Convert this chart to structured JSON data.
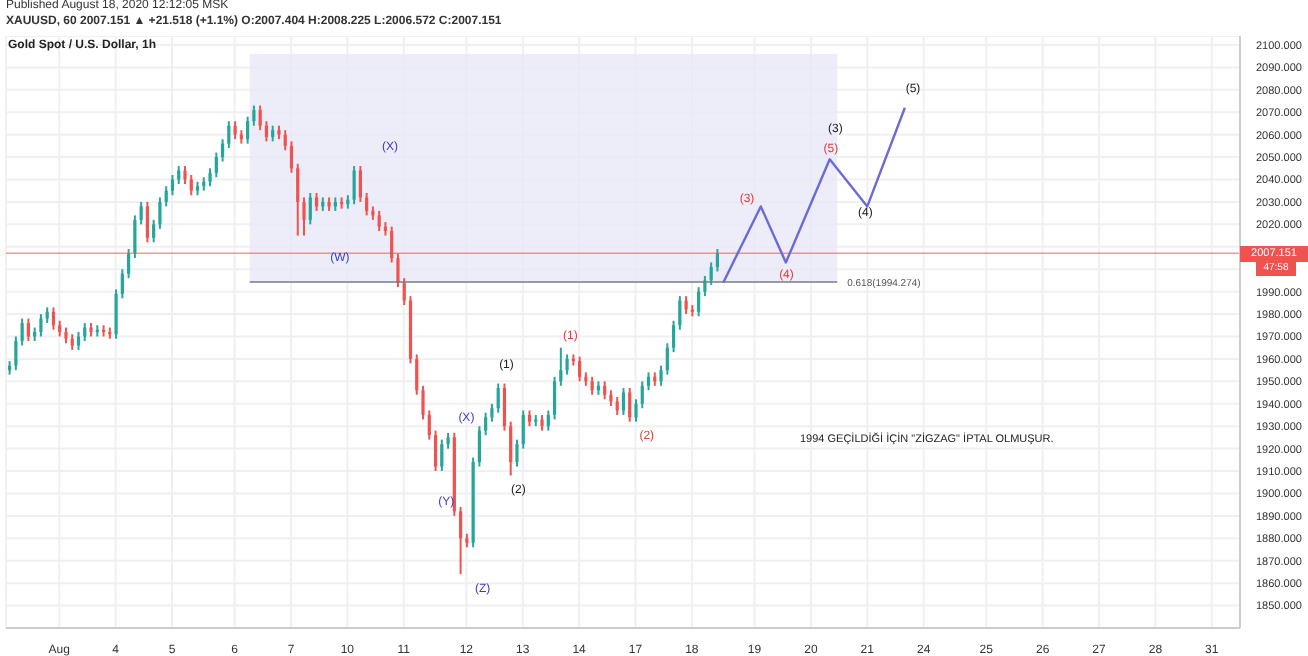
{
  "chart_data": {
    "type": "candlestick",
    "title": "Gold Spot / U.S. Dollar, 1h",
    "subtitle": "XAUUSD, 60 2007.151 ▲ +21.518 (+1.1%) O:2007.404 H:2008.225 L:2006.572 C:2007.151",
    "categories": [
      null,
      null,
      null,
      null,
      null,
      null,
      null,
      null,
      "Aug",
      null,
      null,
      null,
      null,
      null,
      null,
      null,
      null,
      "4",
      null,
      null,
      null,
      null,
      null,
      null,
      null,
      null,
      "5",
      null,
      null,
      null,
      null,
      null,
      null,
      null,
      null,
      null,
      "6",
      null,
      null,
      null,
      null,
      null,
      null,
      null,
      null,
      "7",
      null,
      null,
      null,
      null,
      null,
      null,
      null,
      null,
      "10",
      null,
      null,
      null,
      null,
      null,
      null,
      null,
      null,
      "11",
      null,
      null,
      null,
      null,
      null,
      null,
      null,
      null,
      null,
      "12",
      null,
      null,
      null,
      null,
      null,
      null,
      null,
      null,
      "13",
      null,
      null,
      null,
      null,
      null,
      null,
      null,
      null,
      "14",
      null,
      null,
      null,
      null,
      null,
      null,
      null,
      null,
      "17",
      null,
      null,
      null,
      null,
      null,
      null,
      null,
      null,
      "18",
      null,
      null,
      null,
      null,
      null,
      null,
      null,
      null,
      null,
      "19",
      null,
      null,
      null,
      null,
      null,
      null,
      null,
      null,
      "20",
      null,
      null,
      null,
      null,
      null,
      null,
      null,
      null,
      "21",
      null,
      null,
      null,
      null,
      null,
      null,
      null,
      null,
      "24",
      null,
      null,
      null,
      null,
      null,
      null,
      null,
      null,
      null,
      "25",
      null,
      null,
      null,
      null,
      null,
      null,
      null,
      null,
      "26",
      null,
      null,
      null,
      null,
      null,
      null,
      null,
      null,
      "27",
      null,
      null,
      null,
      null,
      null,
      null,
      null,
      null,
      "28",
      null,
      null,
      null,
      null,
      null,
      null,
      null,
      null,
      "31",
      null,
      null,
      null,
      null
    ],
    "ohlc": [
      [
        1955,
        1959,
        1953,
        1957
      ],
      [
        1957,
        1970,
        1955,
        1968
      ],
      [
        1968,
        1978,
        1966,
        1976
      ],
      [
        1976,
        1978,
        1968,
        1970
      ],
      [
        1970,
        1974,
        1968,
        1972
      ],
      [
        1972,
        1980,
        1970,
        1978
      ],
      [
        1978,
        1983,
        1976,
        1981
      ],
      [
        1981,
        1983,
        1973,
        1975
      ],
      [
        1975,
        1977,
        1970,
        1972
      ],
      [
        1972,
        1974,
        1967,
        1969
      ],
      [
        1969,
        1971,
        1964,
        1966
      ],
      [
        1966,
        1972,
        1964,
        1970
      ],
      [
        1970,
        1976,
        1968,
        1974
      ],
      [
        1974,
        1976,
        1970,
        1972
      ],
      [
        1972,
        1975,
        1970,
        1973
      ],
      [
        1973,
        1975,
        1970,
        1972
      ],
      [
        1972,
        1974,
        1969,
        1971
      ],
      [
        1971,
        1991,
        1969,
        1989
      ],
      [
        1989,
        2000,
        1987,
        1998
      ],
      [
        1998,
        2009,
        1996,
        2007
      ],
      [
        2007,
        2024,
        2005,
        2022
      ],
      [
        2022,
        2030,
        2020,
        2028
      ],
      [
        2028,
        2030,
        2012,
        2014
      ],
      [
        2014,
        2022,
        2012,
        2020
      ],
      [
        2020,
        2032,
        2018,
        2030
      ],
      [
        2030,
        2037,
        2028,
        2035
      ],
      [
        2035,
        2042,
        2033,
        2040
      ],
      [
        2040,
        2046,
        2038,
        2044
      ],
      [
        2044,
        2046,
        2038,
        2040
      ],
      [
        2040,
        2042,
        2033,
        2035
      ],
      [
        2035,
        2039,
        2033,
        2037
      ],
      [
        2037,
        2041,
        2035,
        2039
      ],
      [
        2039,
        2045,
        2037,
        2043
      ],
      [
        2043,
        2052,
        2041,
        2050
      ],
      [
        2050,
        2058,
        2048,
        2056
      ],
      [
        2056,
        2066,
        2054,
        2064
      ],
      [
        2064,
        2066,
        2058,
        2060
      ],
      [
        2060,
        2062,
        2056,
        2058
      ],
      [
        2058,
        2068,
        2056,
        2066
      ],
      [
        2066,
        2073,
        2064,
        2071
      ],
      [
        2071,
        2073,
        2062,
        2064
      ],
      [
        2064,
        2066,
        2057,
        2059
      ],
      [
        2059,
        2064,
        2057,
        2062
      ],
      [
        2062,
        2064,
        2058,
        2060
      ],
      [
        2060,
        2062,
        2053,
        2055
      ],
      [
        2055,
        2057,
        2043,
        2045
      ],
      [
        2045,
        2047,
        2015,
        2030
      ],
      [
        2030,
        2032,
        2015,
        2022
      ],
      [
        2022,
        2034,
        2020,
        2032
      ],
      [
        2032,
        2034,
        2026,
        2028
      ],
      [
        2028,
        2032,
        2026,
        2030
      ],
      [
        2030,
        2032,
        2026,
        2028
      ],
      [
        2028,
        2032,
        2026,
        2030
      ],
      [
        2030,
        2032,
        2027,
        2029
      ],
      [
        2029,
        2033,
        2027,
        2031
      ],
      [
        2031,
        2046,
        2029,
        2044
      ],
      [
        2044,
        2046,
        2030,
        2032
      ],
      [
        2032,
        2034,
        2024,
        2026
      ],
      [
        2026,
        2028,
        2022,
        2024
      ],
      [
        2024,
        2026,
        2017,
        2019
      ],
      [
        2019,
        2021,
        2015,
        2017
      ],
      [
        2017,
        2019,
        2003,
        2005
      ],
      [
        2005,
        2007,
        1992,
        1994
      ],
      [
        1994,
        1996,
        1984,
        1986
      ],
      [
        1986,
        1988,
        1958,
        1960
      ],
      [
        1960,
        1962,
        1944,
        1946
      ],
      [
        1946,
        1948,
        1933,
        1935
      ],
      [
        1935,
        1937,
        1924,
        1926
      ],
      [
        1926,
        1928,
        1910,
        1912
      ],
      [
        1912,
        1924,
        1910,
        1922
      ],
      [
        1922,
        1927,
        1920,
        1925
      ],
      [
        1925,
        1927,
        1890,
        1892
      ],
      [
        1892,
        1894,
        1864,
        1880
      ],
      [
        1880,
        1882,
        1876,
        1878
      ],
      [
        1878,
        1916,
        1876,
        1914
      ],
      [
        1914,
        1930,
        1912,
        1928
      ],
      [
        1928,
        1936,
        1926,
        1934
      ],
      [
        1934,
        1940,
        1932,
        1938
      ],
      [
        1938,
        1949,
        1936,
        1947
      ],
      [
        1947,
        1949,
        1928,
        1930
      ],
      [
        1930,
        1932,
        1908,
        1914
      ],
      [
        1914,
        1924,
        1912,
        1922
      ],
      [
        1922,
        1937,
        1920,
        1935
      ],
      [
        1935,
        1937,
        1930,
        1932
      ],
      [
        1932,
        1935,
        1930,
        1933
      ],
      [
        1933,
        1935,
        1928,
        1930
      ],
      [
        1930,
        1937,
        1928,
        1935
      ],
      [
        1935,
        1952,
        1933,
        1950
      ],
      [
        1950,
        1965,
        1948,
        1955
      ],
      [
        1955,
        1962,
        1953,
        1960
      ],
      [
        1960,
        1962,
        1957,
        1959
      ],
      [
        1959,
        1961,
        1950,
        1952
      ],
      [
        1952,
        1954,
        1948,
        1950
      ],
      [
        1950,
        1952,
        1944,
        1946
      ],
      [
        1946,
        1950,
        1944,
        1948
      ],
      [
        1948,
        1950,
        1942,
        1944
      ],
      [
        1944,
        1946,
        1939,
        1941
      ],
      [
        1941,
        1943,
        1935,
        1937
      ],
      [
        1937,
        1947,
        1935,
        1945
      ],
      [
        1945,
        1947,
        1932,
        1934
      ],
      [
        1934,
        1942,
        1932,
        1940
      ],
      [
        1940,
        1950,
        1938,
        1948
      ],
      [
        1948,
        1954,
        1946,
        1952
      ],
      [
        1952,
        1954,
        1948,
        1950
      ],
      [
        1950,
        1957,
        1948,
        1955
      ],
      [
        1955,
        1967,
        1953,
        1965
      ],
      [
        1965,
        1977,
        1963,
        1975
      ],
      [
        1975,
        1988,
        1973,
        1986
      ],
      [
        1986,
        1988,
        1980,
        1982
      ],
      [
        1982,
        1984,
        1979,
        1981
      ],
      [
        1981,
        1992,
        1979,
        1990
      ],
      [
        1990,
        1997,
        1988,
        1995
      ],
      [
        1995,
        2003,
        1993,
        2001
      ],
      [
        2001,
        2009,
        1999,
        2007.151
      ],
      null,
      null,
      null,
      null,
      null,
      null,
      null,
      null,
      null,
      null,
      null,
      null,
      null,
      null,
      null,
      null,
      null,
      null,
      null,
      null,
      null,
      null,
      null,
      null,
      null,
      null,
      null,
      null,
      null,
      null,
      null,
      null,
      null,
      null,
      null,
      null,
      null,
      null,
      null,
      null,
      null,
      null,
      null,
      null,
      null,
      null,
      null,
      null,
      null,
      null,
      null,
      null,
      null,
      null,
      null,
      null,
      null,
      null,
      null,
      null,
      null,
      null,
      null,
      null,
      null,
      null,
      null,
      null,
      null,
      null,
      null,
      null,
      null,
      null,
      null,
      null,
      null,
      null,
      null,
      null,
      null,
      null,
      null
    ],
    "series": [
      {
        "type": "line",
        "color": "#6b6bd6",
        "values": [
          null,
          null,
          null,
          null,
          null,
          null,
          null,
          null,
          null,
          null,
          null,
          null,
          null,
          null,
          null,
          null,
          null,
          null,
          null,
          null,
          null,
          null,
          null,
          null,
          null,
          null,
          null,
          null,
          null,
          null,
          null,
          null,
          null,
          null,
          null,
          null,
          null,
          null,
          null,
          null,
          null,
          null,
          null,
          null,
          null,
          null,
          null,
          null,
          null,
          null,
          null,
          null,
          null,
          null,
          null,
          null,
          null,
          null,
          null,
          null,
          null,
          null,
          null,
          null,
          null,
          null,
          null,
          null,
          null,
          null,
          null,
          null,
          null,
          null,
          null,
          null,
          null,
          null,
          null,
          null,
          null,
          null,
          null,
          null,
          null,
          null,
          null,
          null,
          null,
          null,
          null,
          null,
          null,
          null,
          null,
          null,
          null,
          null,
          null,
          null,
          null,
          null,
          null,
          null,
          null,
          null,
          null,
          null,
          null,
          null,
          null,
          null,
          null,
          null,
          1994,
          null,
          null,
          null,
          null,
          null,
          2028,
          null,
          null,
          null,
          2003,
          null,
          null,
          null,
          null,
          null,
          null,
          2049,
          null,
          null,
          null,
          null,
          null,
          2028,
          null,
          null,
          null,
          null,
          null,
          2072,
          null,
          null,
          null,
          null,
          null,
          null,
          null,
          null,
          null,
          null,
          null,
          null,
          null,
          null,
          null,
          null,
          null,
          null,
          null,
          null,
          null,
          null,
          null,
          null,
          null,
          null,
          null,
          null,
          null,
          null,
          null,
          null,
          null,
          null,
          null,
          null,
          null,
          null,
          null,
          null,
          null,
          null,
          null,
          null,
          null,
          null,
          null,
          null,
          null,
          null,
          null,
          null,
          null
        ]
      }
    ],
    "ylim": [
      1840,
      2104
    ],
    "yticks": [
      {
        "value": 1850,
        "label": "1850.000"
      },
      {
        "value": 1860,
        "label": "1860.000"
      },
      {
        "value": 1870,
        "label": "1870.000"
      },
      {
        "value": 1880,
        "label": "1880.000"
      },
      {
        "value": 1890,
        "label": "1890.000"
      },
      {
        "value": 1900,
        "label": "1900.000"
      },
      {
        "value": 1910,
        "label": "1910.000"
      },
      {
        "value": 1920,
        "label": "1920.000"
      },
      {
        "value": 1930,
        "label": "1930.000"
      },
      {
        "value": 1940,
        "label": "1940.000"
      },
      {
        "value": 1950,
        "label": "1950.000"
      },
      {
        "value": 1960,
        "label": "1960.000"
      },
      {
        "value": 1970,
        "label": "1970.000"
      },
      {
        "value": 1980,
        "label": "1980.000"
      },
      {
        "value": 1990,
        "label": "1990.000"
      },
      {
        "value": 2000,
        "label": null
      },
      {
        "value": 2010,
        "label": null
      },
      {
        "value": 2020,
        "label": "2020.000"
      },
      {
        "value": 2030,
        "label": "2030.000"
      },
      {
        "value": 2040,
        "label": "2040.000"
      },
      {
        "value": 2050,
        "label": "2050.000"
      },
      {
        "value": 2060,
        "label": "2060.000"
      },
      {
        "value": 2070,
        "label": "2070.000"
      },
      {
        "value": 2080,
        "label": "2080.000"
      },
      {
        "value": 2090,
        "label": "2090.000"
      },
      {
        "value": 2100,
        "label": "2100.000"
      }
    ],
    "grid": true,
    "bands": [
      {
        "axis": "y",
        "from": 1994.274,
        "to": 2096,
        "color": "#e9e7f7"
      }
    ],
    "ref_lines": [
      {
        "axis": "y",
        "value": 1994.274,
        "label": "0.618(1994.274)",
        "color": "#787b86"
      },
      {
        "axis": "y",
        "value": 2007.151,
        "label": "2007.151",
        "color": "#ef5350"
      }
    ],
    "annotations": [
      "Published August 18, 2020 12:12:05 MSK",
      "47:58",
      "1994 GEÇİLDİĞİ İÇİN \"ZİGZAG\" İPTAL OLMUŞUR.",
      "(W)",
      "(X)",
      "(X)",
      "(Y)",
      "(Z)",
      "(1)",
      "(2)",
      "(1)",
      "(2)",
      "(3)",
      "(4)",
      "(5)",
      "(3)",
      "(4)",
      "(5)"
    ]
  }
}
